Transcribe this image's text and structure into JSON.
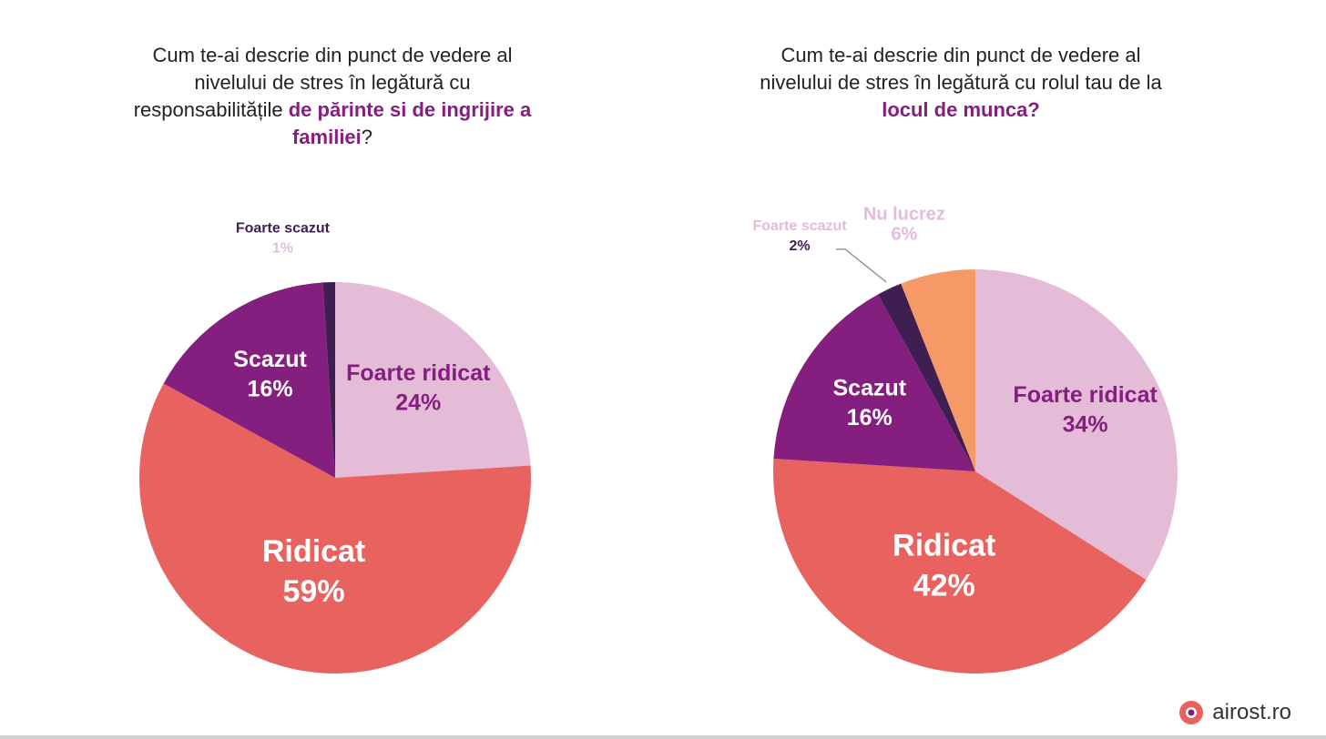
{
  "chart_data": [
    {
      "type": "pie",
      "title": [
        "Cum te-ai descrie din punct de vedere al nivelului de stres în legătură cu responsabilitățile",
        "de părinte si de ingrijire a familiei",
        "?"
      ],
      "categories": [
        "Foarte ridicat",
        "Ridicat",
        "Scazut",
        "Foarte scazut"
      ],
      "values": [
        24,
        59,
        16,
        1
      ],
      "value_labels": [
        "24%",
        "59%",
        "16%",
        "1%"
      ],
      "colors": [
        "#e4bcd8",
        "#e8625f",
        "#841f7f",
        "#3f1f52"
      ]
    },
    {
      "type": "pie",
      "title": [
        "Cum te-ai descrie din punct de vedere al nivelului de stres în legătură cu rolul tau de la",
        "locul de munca?",
        ""
      ],
      "categories": [
        "Foarte ridicat",
        "Ridicat",
        "Scazut",
        "Foarte scazut",
        "Nu lucrez"
      ],
      "values": [
        34,
        42,
        16,
        2,
        6
      ],
      "value_labels": [
        "34%",
        "42%",
        "16%",
        "2%",
        "6%"
      ],
      "colors": [
        "#e4bcd8",
        "#e8625f",
        "#841f7f",
        "#3f1f52",
        "#f59a66"
      ]
    }
  ],
  "brand": "airost.ro"
}
